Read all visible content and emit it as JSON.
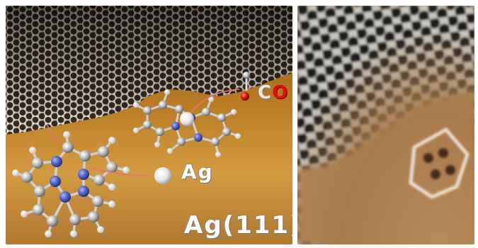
{
  "labels": {
    "co_c": "C",
    "co_o": "O",
    "ag_atom": "Ag",
    "surface": "Ag(111)"
  },
  "colors": {
    "carbon": "#b8b8b8",
    "nitrogen": "#4f63c9",
    "hydrogen": "#f4f4f4",
    "oxygen": "#e01010",
    "silver_surface": "#b97c24",
    "arrow": "#f06060"
  }
}
